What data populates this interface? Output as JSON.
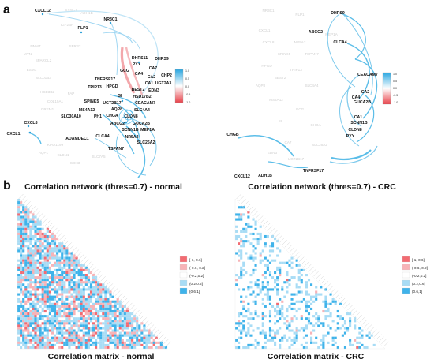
{
  "panels": {
    "a": "a",
    "b": "b"
  },
  "titles": {
    "network_normal": "Correlation network (thres=0.7) - normal",
    "network_crc": "Correlation network (thres=0.7) - CRC",
    "matrix_normal": "Correlation matrix - normal",
    "matrix_crc": "Correlation matrix - CRC"
  },
  "network_normal": {
    "genes": [
      "CXCL12",
      "NR3C1",
      "PLP1",
      "DHRS11",
      "DHRS9",
      "PYY",
      "GCG",
      "CA7",
      "CA4",
      "CA2",
      "CHP2",
      "TNFRSF17",
      "CA1",
      "UGT2A3",
      "TRIP13",
      "HPGD",
      "BEST2",
      "EDN3",
      "SI",
      "HSD17B2",
      "SPINK5",
      "UGT2B17",
      "CEACAM7",
      "MS4A12",
      "AQP8",
      "SLC4A4",
      "SLC30A10",
      "PH1",
      "CHGA",
      "CLDN8",
      "ABCG2",
      "GUCA2B",
      "SCNN1B",
      "MEP1A",
      "CXCL8",
      "CXCL1",
      "ADAMDEC1",
      "CLCA4",
      "NR5A2",
      "SLC26A2",
      "TSPAN7"
    ],
    "ghost_genes": [
      "SYNC1",
      "ADH1B",
      "IGF2BP",
      "SFRP2",
      "MYN",
      "SPARCL2",
      "NNMT",
      "ESM1",
      "SLC01B3",
      "HSD3B2",
      "COL10A1",
      "FAP",
      "GREM1",
      "KIAA1199",
      "AQP1",
      "CLDN1",
      "CDH3",
      "SLC7A5"
    ],
    "colorbar_ticks": [
      "1.0",
      "0.5",
      "0.0",
      "-0.5",
      "-1.0"
    ]
  },
  "network_crc": {
    "genes": [
      "DHRS9",
      "ABCG2",
      "CLCA4",
      "CEACAM7",
      "CA2",
      "CA4",
      "GUCA2B",
      "CA1",
      "SCNN1B",
      "CLDN8",
      "PYY",
      "CHGB",
      "TNFRSF17",
      "CXCL12",
      "ADH1B"
    ],
    "ghost_genes": [
      "NR3C1",
      "PLP1",
      "CXCL1",
      "CXCL8",
      "SPINK5",
      "HPGD",
      "BEST2",
      "TRIP13",
      "SLC4A4",
      "AQP8",
      "MS4A12",
      "GCG",
      "SI",
      "CHGA",
      "CA7",
      "EDN3",
      "UGT2B17",
      "SLC26A2",
      "TSPAN7",
      "MEP1A",
      "NR5A2"
    ],
    "colorbar_ticks": [
      "1.0",
      "0.5",
      "0.0",
      "-0.5",
      "-1.0"
    ]
  },
  "matrix_legend": [
    {
      "label": "[-1,-0.6]",
      "color": "#f26b72"
    },
    {
      "label": "(-0.6,-0.2]",
      "color": "#f7b3b7"
    },
    {
      "label": "(-0.2,0.2]",
      "color": "#ffffff"
    },
    {
      "label": "(0.2,0.6]",
      "color": "#a8dcf5"
    },
    {
      "label": "(0.6,1]",
      "color": "#3fb3ea"
    }
  ],
  "colors": {
    "positive": "#5bbde8",
    "negative": "#ee6e74",
    "ghost": "#d0d0d0"
  }
}
